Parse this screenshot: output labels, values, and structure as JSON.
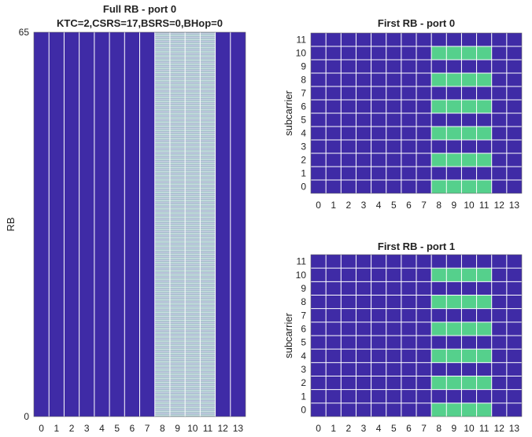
{
  "colors": {
    "off": "#3F2BA6",
    "on": "#55D08C",
    "grid": "#FFFFFF",
    "text": "#222222"
  },
  "chart_data": [
    {
      "type": "heatmap",
      "title": "Full RB - port 0",
      "subtitle": "KTC=2,CSRS=17,BSRS=0,BHop=0",
      "xlabel": "",
      "ylabel": "RB",
      "x": [
        "0",
        "1",
        "2",
        "3",
        "4",
        "5",
        "6",
        "7",
        "8",
        "9",
        "10",
        "11",
        "12",
        "13"
      ],
      "y_ticks": [
        "0",
        "65"
      ],
      "ylim": [
        0,
        65
      ],
      "rows_per_rb": 12,
      "active_columns": [
        8,
        9,
        10,
        11
      ],
      "active_pattern": "every other subcarrier (comb 2) over all RBs",
      "grid": true
    },
    {
      "type": "heatmap",
      "title": "First RB - port 0",
      "xlabel": "",
      "ylabel": "subcarrier",
      "x": [
        "0",
        "1",
        "2",
        "3",
        "4",
        "5",
        "6",
        "7",
        "8",
        "9",
        "10",
        "11",
        "12",
        "13"
      ],
      "y": [
        "0",
        "1",
        "2",
        "3",
        "4",
        "5",
        "6",
        "7",
        "8",
        "9",
        "10",
        "11"
      ],
      "active_columns": [
        8,
        9,
        10,
        11
      ],
      "active_rows": [
        0,
        2,
        4,
        6,
        8,
        10
      ],
      "grid": true
    },
    {
      "type": "heatmap",
      "title": "First RB - port 1",
      "xlabel": "",
      "ylabel": "subcarrier",
      "x": [
        "0",
        "1",
        "2",
        "3",
        "4",
        "5",
        "6",
        "7",
        "8",
        "9",
        "10",
        "11",
        "12",
        "13"
      ],
      "y": [
        "0",
        "1",
        "2",
        "3",
        "4",
        "5",
        "6",
        "7",
        "8",
        "9",
        "10",
        "11"
      ],
      "active_columns": [
        8,
        9,
        10,
        11
      ],
      "active_rows": [
        0,
        2,
        4,
        6,
        8,
        10
      ],
      "grid": true
    }
  ]
}
